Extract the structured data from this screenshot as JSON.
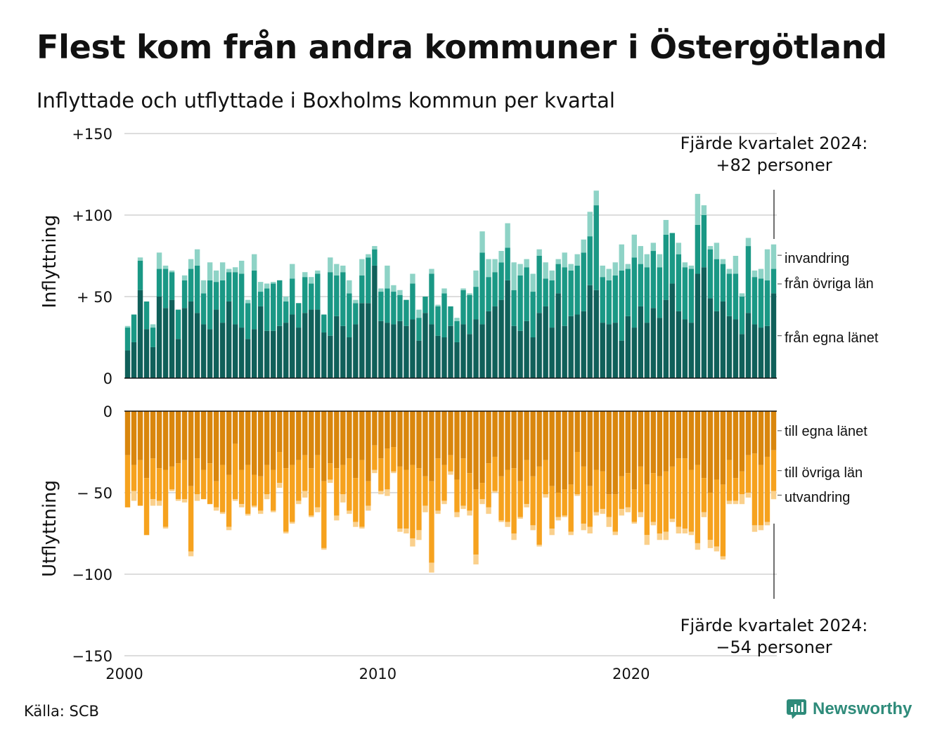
{
  "title": "Flest kom från andra kommuner i Östergötland",
  "subtitle": "Inflyttade och utflyttade i Boxholms kommun per kvartal",
  "source": "Källa: SCB",
  "brand": "Newsworthy",
  "colors": {
    "in_egna": "#10605a",
    "in_ovriga": "#1a9885",
    "in_invandring": "#8ed3c6",
    "ut_egna": "#d9860d",
    "ut_ovriga": "#f6a21e",
    "ut_utvandring": "#fad08c",
    "grid": "#dddddd",
    "brand": "#2e8b7a"
  },
  "chart_data": [
    {
      "type": "bar",
      "stacked": true,
      "ylabel": "Inflyttning",
      "ylim": [
        0,
        150
      ],
      "yticks": [
        "0",
        "+ 50",
        "+100",
        "+150"
      ],
      "x_start": 2000,
      "x_step": "kvartal",
      "annotation": [
        "Fjärde kvartalet 2024:",
        "+82 personer"
      ],
      "series": [
        {
          "name": "från egna länet",
          "values": [
            17,
            22,
            54,
            30,
            19,
            50,
            43,
            48,
            24,
            43,
            47,
            40,
            33,
            30,
            42,
            34,
            47,
            33,
            31,
            24,
            30,
            44,
            29,
            29,
            32,
            34,
            39,
            31,
            40,
            42,
            42,
            28,
            26,
            38,
            32,
            25,
            33,
            46,
            46,
            69,
            35,
            34,
            33,
            35,
            32,
            36,
            23,
            40,
            33,
            26,
            25,
            32,
            22,
            33,
            27,
            36,
            33,
            41,
            44,
            48,
            60,
            32,
            29,
            35,
            25,
            40,
            44,
            31,
            52,
            32,
            38,
            39,
            41,
            57,
            54,
            34,
            33,
            34,
            23,
            38,
            31,
            44,
            34,
            43,
            37,
            48,
            58,
            41,
            36,
            34,
            64,
            68,
            49,
            41,
            47,
            38,
            36,
            27,
            40,
            33,
            31,
            32,
            52
          ]
        },
        {
          "name": "från övriga län",
          "values": [
            14,
            17,
            18,
            17,
            12,
            17,
            24,
            17,
            18,
            17,
            20,
            29,
            19,
            30,
            17,
            26,
            18,
            32,
            33,
            22,
            36,
            9,
            26,
            29,
            28,
            13,
            22,
            15,
            22,
            16,
            22,
            11,
            39,
            25,
            33,
            27,
            13,
            17,
            28,
            10,
            18,
            21,
            20,
            16,
            16,
            22,
            14,
            10,
            31,
            18,
            27,
            12,
            13,
            21,
            24,
            20,
            44,
            21,
            21,
            23,
            20,
            22,
            34,
            33,
            28,
            35,
            17,
            29,
            18,
            36,
            28,
            30,
            36,
            30,
            52,
            28,
            27,
            29,
            43,
            29,
            43,
            26,
            34,
            35,
            31,
            40,
            31,
            35,
            32,
            33,
            30,
            32,
            30,
            32,
            23,
            26,
            28,
            23,
            41,
            29,
            30,
            28,
            15
          ]
        },
        {
          "name": "invandring",
          "values": [
            1,
            0,
            2,
            0,
            2,
            10,
            2,
            1,
            0,
            3,
            6,
            10,
            8,
            11,
            7,
            11,
            2,
            3,
            8,
            2,
            10,
            6,
            3,
            1,
            0,
            3,
            9,
            0,
            3,
            4,
            2,
            0,
            9,
            7,
            4,
            8,
            2,
            10,
            2,
            2,
            2,
            14,
            4,
            3,
            0,
            6,
            5,
            0,
            3,
            1,
            3,
            0,
            2,
            1,
            1,
            10,
            13,
            11,
            8,
            7,
            15,
            17,
            7,
            5,
            11,
            4,
            10,
            6,
            3,
            9,
            4,
            7,
            8,
            15,
            9,
            7,
            7,
            8,
            16,
            3,
            14,
            11,
            8,
            5,
            8,
            9,
            0,
            7,
            3,
            2,
            19,
            6,
            2,
            10,
            3,
            3,
            11,
            2,
            5,
            4,
            6,
            19,
            15
          ]
        }
      ]
    },
    {
      "type": "bar",
      "stacked": true,
      "ylabel": "Utflyttning",
      "ylim": [
        -150,
        0
      ],
      "yticks": [
        "0",
        "− 50",
        "−100",
        "−150"
      ],
      "x_start": 2000,
      "x_step": "kvartal",
      "xticks": [
        "2000",
        "2010",
        "2020"
      ],
      "annotation": [
        "Fjärde kvartalet 2024:",
        "−54 personer"
      ],
      "series": [
        {
          "name": "till egna länet",
          "values": [
            -27,
            -33,
            -30,
            -41,
            -29,
            -35,
            -36,
            -34,
            -32,
            -30,
            -46,
            -29,
            -36,
            -32,
            -43,
            -33,
            -39,
            -20,
            -36,
            -33,
            -39,
            -40,
            -33,
            -36,
            -25,
            -35,
            -33,
            -30,
            -27,
            -35,
            -27,
            -43,
            -32,
            -35,
            -33,
            -29,
            -41,
            -30,
            -43,
            -21,
            -29,
            -23,
            -22,
            -34,
            -36,
            -33,
            -35,
            -40,
            -43,
            -29,
            -33,
            -27,
            -42,
            -29,
            -38,
            -48,
            -44,
            -32,
            -28,
            -40,
            -36,
            -35,
            -43,
            -30,
            -40,
            -34,
            -30,
            -46,
            -50,
            -48,
            -45,
            -25,
            -34,
            -46,
            -36,
            -37,
            -51,
            -51,
            -40,
            -38,
            -48,
            -34,
            -45,
            -38,
            -40,
            -37,
            -34,
            -29,
            -29,
            -36,
            -33,
            -41,
            -50,
            -42,
            -45,
            -30,
            -41,
            -37,
            -27,
            -26,
            -33,
            -28,
            -24
          ]
        },
        {
          "name": "till övriga län",
          "values": [
            -32,
            -16,
            -28,
            -35,
            -25,
            -20,
            -35,
            -14,
            -22,
            -24,
            -40,
            -22,
            -18,
            -25,
            -16,
            -29,
            -32,
            -34,
            -21,
            -30,
            -19,
            -21,
            -18,
            -25,
            -19,
            -39,
            -35,
            -25,
            -22,
            -29,
            -32,
            -41,
            -10,
            -29,
            -18,
            -32,
            -27,
            -41,
            -15,
            -15,
            -20,
            -25,
            -15,
            -38,
            -36,
            -45,
            -38,
            -18,
            -50,
            -32,
            -22,
            -10,
            -20,
            -29,
            -23,
            -40,
            -10,
            -27,
            -21,
            -27,
            -32,
            -40,
            -22,
            -27,
            -30,
            -48,
            -21,
            -26,
            -15,
            -16,
            -29,
            -26,
            -35,
            -25,
            -26,
            -23,
            -14,
            -23,
            -20,
            -21,
            -20,
            -28,
            -31,
            -30,
            -35,
            -37,
            -32,
            -42,
            -43,
            -38,
            -48,
            -21,
            -29,
            -41,
            -44,
            -25,
            -14,
            -14,
            -23,
            -44,
            -37,
            -40,
            -25
          ]
        },
        {
          "name": "utvandring",
          "values": [
            0,
            -6,
            0,
            0,
            -4,
            -3,
            -1,
            -1,
            -1,
            -2,
            -3,
            -4,
            0,
            0,
            -2,
            -1,
            -2,
            -1,
            -2,
            -1,
            -1,
            -2,
            -3,
            -1,
            -3,
            -1,
            -1,
            -2,
            -4,
            -1,
            -3,
            -1,
            -2,
            -3,
            -5,
            -2,
            -3,
            -1,
            -3,
            -2,
            -2,
            -4,
            -1,
            -2,
            -3,
            -5,
            -6,
            -4,
            -6,
            -2,
            -2,
            -2,
            -3,
            -2,
            -3,
            -6,
            -3,
            -4,
            -1,
            -1,
            -3,
            -4,
            -1,
            -2,
            -3,
            -1,
            -2,
            -4,
            -2,
            -1,
            -2,
            -1,
            -4,
            -4,
            -2,
            -3,
            -6,
            -2,
            -4,
            -3,
            -1,
            -3,
            -6,
            -2,
            -4,
            -5,
            -2,
            -4,
            -3,
            -2,
            -4,
            -3,
            -5,
            -3,
            -2,
            -2,
            -2,
            -6,
            -3,
            -4,
            -3,
            -2,
            -5
          ]
        }
      ]
    }
  ]
}
